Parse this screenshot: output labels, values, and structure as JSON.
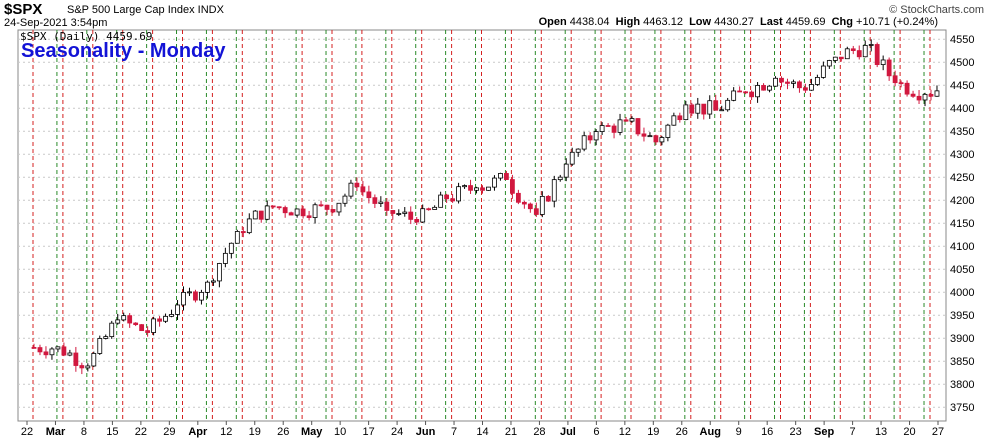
{
  "header": {
    "symbol": "$SPX",
    "description": "S&P 500 Large Cap Index  INDX",
    "datetime": "24-Sep-2021 3:54pm",
    "credit": "© StockCharts.com",
    "open_label": "Open",
    "open": "4438.04",
    "high_label": "High",
    "high": "4463.12",
    "low_label": "Low",
    "low": "4430.27",
    "last_label": "Last",
    "last": "4459.69",
    "chg_label": "Chg",
    "chg": "+10.71 (+0.24%)",
    "legend": "$SPX (Daily) 4459.69",
    "annotation": "Seasonality - Monday"
  },
  "colors": {
    "up": "#ffffff",
    "down": "#d1183f",
    "monday": "#d42020",
    "friday": "#2a8a2a",
    "grid": "#c9c9c9"
  },
  "chart_data": {
    "type": "candlestick",
    "title": "Seasonality - Monday",
    "ylim": [
      3720,
      4570
    ],
    "y_ticks": [
      3750,
      3800,
      3850,
      3900,
      3950,
      4000,
      4050,
      4100,
      4150,
      4200,
      4250,
      4300,
      4350,
      4400,
      4450,
      4500,
      4550
    ],
    "x_ticks": [
      {
        "label": "22",
        "bold": false
      },
      {
        "label": "Mar",
        "bold": true
      },
      {
        "label": "8",
        "bold": false
      },
      {
        "label": "15",
        "bold": false
      },
      {
        "label": "22",
        "bold": false
      },
      {
        "label": "29",
        "bold": false
      },
      {
        "label": "Apr",
        "bold": true
      },
      {
        "label": "12",
        "bold": false
      },
      {
        "label": "19",
        "bold": false
      },
      {
        "label": "26",
        "bold": false
      },
      {
        "label": "May",
        "bold": true
      },
      {
        "label": "10",
        "bold": false
      },
      {
        "label": "17",
        "bold": false
      },
      {
        "label": "24",
        "bold": false
      },
      {
        "label": "Jun",
        "bold": true
      },
      {
        "label": "7",
        "bold": false
      },
      {
        "label": "14",
        "bold": false
      },
      {
        "label": "21",
        "bold": false
      },
      {
        "label": "28",
        "bold": false
      },
      {
        "label": "Jul",
        "bold": true
      },
      {
        "label": "6",
        "bold": false
      },
      {
        "label": "12",
        "bold": false
      },
      {
        "label": "19",
        "bold": false
      },
      {
        "label": "26",
        "bold": false
      },
      {
        "label": "Aug",
        "bold": true
      },
      {
        "label": "9",
        "bold": false
      },
      {
        "label": "16",
        "bold": false
      },
      {
        "label": "23",
        "bold": false
      },
      {
        "label": "Sep",
        "bold": true
      },
      {
        "label": "7",
        "bold": false
      },
      {
        "label": "13",
        "bold": false
      },
      {
        "label": "20",
        "bold": false
      },
      {
        "label": "27",
        "bold": false
      }
    ],
    "weeks": [
      {
        "monday": "2021-02-22",
        "close": 3880
      },
      {
        "monday": "2021-03-01",
        "close": 3842
      },
      {
        "monday": "2021-03-08",
        "close": 3943
      },
      {
        "monday": "2021-03-15",
        "close": 3913
      },
      {
        "monday": "2021-03-22",
        "close": 3974
      },
      {
        "monday": "2021-03-29",
        "close": 4020
      },
      {
        "monday": "2021-04-05",
        "close": 4129
      },
      {
        "monday": "2021-04-12",
        "close": 4185
      },
      {
        "monday": "2021-04-19",
        "close": 4180
      },
      {
        "monday": "2021-04-26",
        "close": 4181
      },
      {
        "monday": "2021-05-03",
        "close": 4232
      },
      {
        "monday": "2021-05-10",
        "close": 4174
      },
      {
        "monday": "2021-05-17",
        "close": 4156
      },
      {
        "monday": "2021-05-24",
        "close": 4204
      },
      {
        "monday": "2021-05-31",
        "close": 4230
      },
      {
        "monday": "2021-06-07",
        "close": 4247
      },
      {
        "monday": "2021-06-14",
        "close": 4166
      },
      {
        "monday": "2021-06-21",
        "close": 4281
      },
      {
        "monday": "2021-06-28",
        "close": 4352
      },
      {
        "monday": "2021-07-05",
        "close": 4369
      },
      {
        "monday": "2021-07-12",
        "close": 4327
      },
      {
        "monday": "2021-07-19",
        "close": 4411
      },
      {
        "monday": "2021-07-26",
        "close": 4395
      },
      {
        "monday": "2021-08-02",
        "close": 4437
      },
      {
        "monday": "2021-08-09",
        "close": 4468
      },
      {
        "monday": "2021-08-16",
        "close": 4441
      },
      {
        "monday": "2021-08-23",
        "close": 4509
      },
      {
        "monday": "2021-08-30",
        "close": 4535
      },
      {
        "monday": "2021-09-06",
        "close": 4458
      },
      {
        "monday": "2021-09-13",
        "close": 4432
      },
      {
        "monday": "2021-09-20",
        "close": 4459
      }
    ]
  }
}
